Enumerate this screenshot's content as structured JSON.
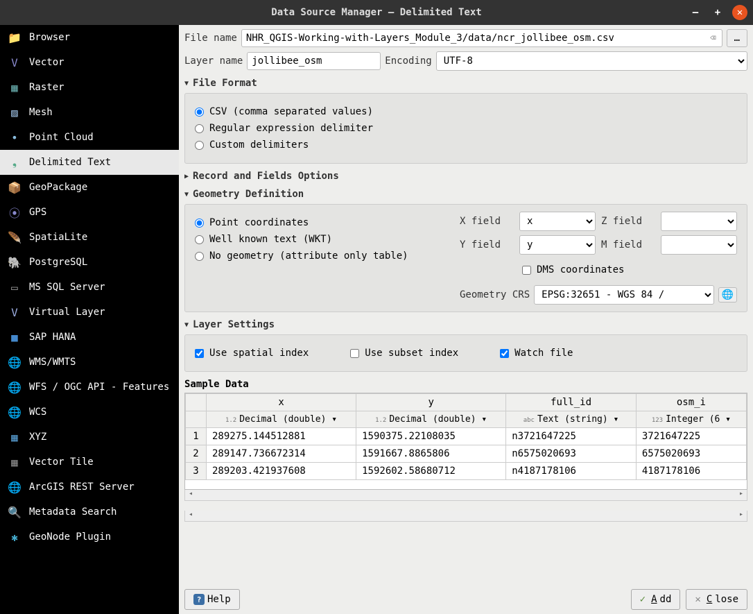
{
  "window": {
    "title": "Data Source Manager — Delimited Text"
  },
  "sidebar": {
    "items": [
      {
        "label": "Browser",
        "icon": "📁",
        "color": "#f4c542"
      },
      {
        "label": "Vector",
        "icon": "V",
        "color": "#88c"
      },
      {
        "label": "Raster",
        "icon": "▦",
        "color": "#6aa"
      },
      {
        "label": "Mesh",
        "icon": "▨",
        "color": "#9bd"
      },
      {
        "label": "Point Cloud",
        "icon": "•",
        "color": "#8bd"
      },
      {
        "label": "Delimited Text",
        "icon": "❟",
        "color": "#5a8",
        "selected": true
      },
      {
        "label": "GeoPackage",
        "icon": "📦",
        "color": "#c93"
      },
      {
        "label": "GPS",
        "icon": "⦿",
        "color": "#88c"
      },
      {
        "label": "SpatiaLite",
        "icon": "🪶",
        "color": "#68a"
      },
      {
        "label": "PostgreSQL",
        "icon": "🐘",
        "color": "#5a9"
      },
      {
        "label": "MS SQL Server",
        "icon": "▭",
        "color": "#999"
      },
      {
        "label": "Virtual Layer",
        "icon": "V",
        "color": "#9ad"
      },
      {
        "label": "SAP HANA",
        "icon": "■",
        "color": "#48c"
      },
      {
        "label": "WMS/WMTS",
        "icon": "🌐",
        "color": "#6ab"
      },
      {
        "label": "WFS / OGC API - Features",
        "icon": "🌐",
        "color": "#6ab"
      },
      {
        "label": "WCS",
        "icon": "🌐",
        "color": "#6ab"
      },
      {
        "label": "XYZ",
        "icon": "▦",
        "color": "#59c"
      },
      {
        "label": "Vector Tile",
        "icon": "▦",
        "color": "#888"
      },
      {
        "label": "ArcGIS REST Server",
        "icon": "🌐",
        "color": "#6ab"
      },
      {
        "label": "Metadata Search",
        "icon": "🔍",
        "color": "#bbb"
      },
      {
        "label": "GeoNode Plugin",
        "icon": "✱",
        "color": "#4ac"
      }
    ]
  },
  "file": {
    "name_label": "File name",
    "name_value": "NHR_QGIS-Working-with-Layers_Module_3/data/ncr_jollibee_osm.csv",
    "browse": "…",
    "layer_label": "Layer name",
    "layer_value": "jollibee_osm",
    "encoding_label": "Encoding",
    "encoding_value": "UTF-8"
  },
  "sections": {
    "file_format": "File Format",
    "record_fields": "Record and Fields Options",
    "geometry": "Geometry Definition",
    "layer_settings": "Layer Settings",
    "sample_data": "Sample Data"
  },
  "file_format": {
    "csv": "CSV (comma separated values)",
    "regex": "Regular expression delimiter",
    "custom": "Custom delimiters",
    "selected": "csv"
  },
  "geometry": {
    "point": "Point coordinates",
    "wkt": "Well known text (WKT)",
    "none": "No geometry (attribute only table)",
    "selected": "point",
    "x_label": "X field",
    "x_value": "x",
    "y_label": "Y field",
    "y_value": "y",
    "z_label": "Z field",
    "z_value": "",
    "m_label": "M field",
    "m_value": "",
    "dms": "DMS coordinates",
    "crs_label": "Geometry CRS",
    "crs_value": "EPSG:32651 - WGS 84 / "
  },
  "layer_settings": {
    "spatial": "Use spatial index",
    "spatial_checked": true,
    "subset": "Use subset index",
    "subset_checked": false,
    "watch": "Watch file",
    "watch_checked": true
  },
  "table": {
    "columns": [
      "x",
      "y",
      "full_id",
      "osm_i"
    ],
    "types": [
      {
        "badge": "1.2",
        "label": "Decimal (double)"
      },
      {
        "badge": "1.2",
        "label": "Decimal (double)"
      },
      {
        "badge": "abc",
        "label": "Text (string)"
      },
      {
        "badge": "123",
        "label": "Integer (6"
      }
    ],
    "rows": [
      [
        "289275.144512881",
        "1590375.22108035",
        "n3721647225",
        "3721647225"
      ],
      [
        "289147.736672314",
        "1591667.8865806",
        "n6575020693",
        "6575020693"
      ],
      [
        "289203.421937608",
        "1592602.58680712",
        "n4187178106",
        "4187178106"
      ]
    ]
  },
  "footer": {
    "help": "Help",
    "add": "Add",
    "close": "Close"
  }
}
